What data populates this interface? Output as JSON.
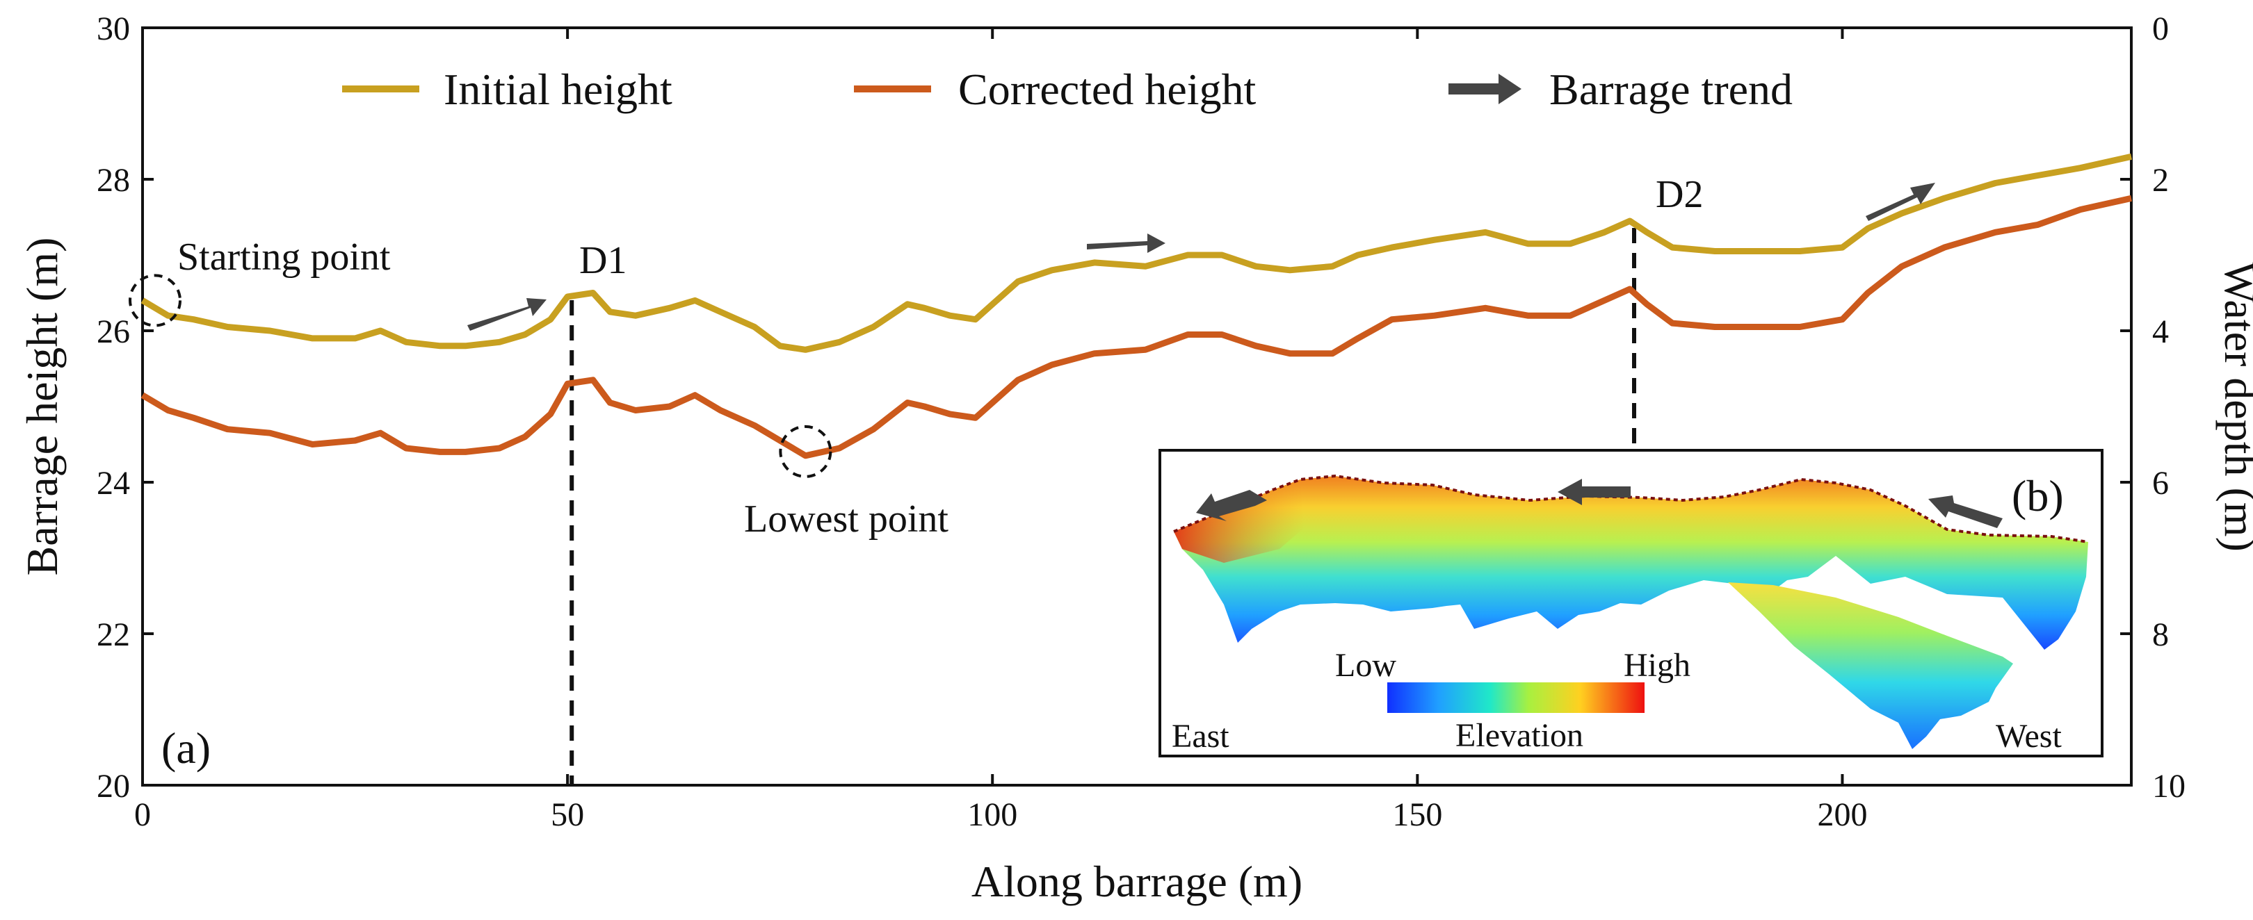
{
  "chart_data": {
    "type": "line",
    "panel_label": "(a)",
    "xlabel": "Along barrage (m)",
    "ylabel": "Barrage height (m)",
    "y2label": "Water depth (m)",
    "xlim": [
      0,
      234
    ],
    "ylim": [
      20,
      30
    ],
    "y2lim": [
      0,
      10
    ],
    "xticks": [
      0,
      50,
      100,
      150,
      200
    ],
    "yticks": [
      20,
      22,
      24,
      26,
      28,
      30
    ],
    "y2ticks": [
      0,
      2,
      4,
      6,
      8,
      10
    ],
    "grid": false,
    "legend_position": "top",
    "series": [
      {
        "name": "Initial height",
        "color": "#C8A020",
        "x": [
          0,
          3,
          6,
          10,
          15,
          20,
          25,
          28,
          31,
          35,
          38,
          42,
          45,
          48,
          50,
          53,
          55,
          58,
          62,
          65,
          68,
          72,
          75,
          78,
          82,
          86,
          90,
          92,
          95,
          98,
          100,
          103,
          107,
          112,
          118,
          123,
          127,
          131,
          135,
          140,
          143,
          147,
          152,
          158,
          163,
          168,
          172,
          175,
          177,
          180,
          185,
          190,
          195,
          200,
          203,
          207,
          212,
          218,
          223,
          228,
          234
        ],
        "values": [
          26.4,
          26.2,
          26.15,
          26.05,
          26.0,
          25.9,
          25.9,
          26.0,
          25.85,
          25.8,
          25.8,
          25.85,
          25.95,
          26.15,
          26.45,
          26.5,
          26.25,
          26.2,
          26.3,
          26.4,
          26.25,
          26.05,
          25.8,
          25.75,
          25.85,
          26.05,
          26.35,
          26.3,
          26.2,
          26.15,
          26.35,
          26.65,
          26.8,
          26.9,
          26.85,
          27.0,
          27.0,
          26.85,
          26.8,
          26.85,
          27.0,
          27.1,
          27.2,
          27.3,
          27.15,
          27.15,
          27.3,
          27.45,
          27.3,
          27.1,
          27.05,
          27.05,
          27.05,
          27.1,
          27.35,
          27.55,
          27.75,
          27.95,
          28.05,
          28.15,
          28.3
        ]
      },
      {
        "name": "Corrected height",
        "color": "#CC5A1C",
        "x": [
          0,
          3,
          6,
          10,
          15,
          20,
          25,
          28,
          31,
          35,
          38,
          42,
          45,
          48,
          50,
          53,
          55,
          58,
          62,
          65,
          68,
          72,
          75,
          78,
          82,
          86,
          90,
          92,
          95,
          98,
          100,
          103,
          107,
          112,
          118,
          123,
          127,
          131,
          135,
          140,
          143,
          147,
          152,
          158,
          163,
          168,
          172,
          175,
          177,
          180,
          185,
          190,
          195,
          200,
          203,
          207,
          212,
          218,
          223,
          228,
          234
        ],
        "values": [
          25.15,
          24.95,
          24.85,
          24.7,
          24.65,
          24.5,
          24.55,
          24.65,
          24.45,
          24.4,
          24.4,
          24.45,
          24.6,
          24.9,
          25.3,
          25.35,
          25.05,
          24.95,
          25.0,
          25.15,
          24.95,
          24.75,
          24.55,
          24.35,
          24.45,
          24.7,
          25.05,
          25.0,
          24.9,
          24.85,
          25.05,
          25.35,
          25.55,
          25.7,
          25.75,
          25.95,
          25.95,
          25.8,
          25.7,
          25.7,
          25.9,
          26.15,
          26.2,
          26.3,
          26.2,
          26.2,
          26.4,
          26.55,
          26.35,
          26.1,
          26.05,
          26.05,
          26.05,
          26.15,
          26.5,
          26.85,
          27.1,
          27.3,
          27.4,
          27.6,
          27.75
        ]
      }
    ],
    "legend_entries": [
      "Initial height",
      "Corrected height",
      "Barrage trend"
    ],
    "annotations": [
      {
        "text": "Starting point",
        "x": 0,
        "y": 26.4
      },
      {
        "text": "Lowest point",
        "x": 78,
        "y": 24.35
      },
      {
        "text": "D1",
        "x": 50.5
      },
      {
        "text": "D2",
        "x": 175.5
      }
    ],
    "inset": {
      "label": "(b)",
      "colorbar_low": "Low",
      "colorbar_high": "High",
      "colorbar_title": "Elevation",
      "left_label": "East",
      "right_label": "West"
    }
  },
  "colors": {
    "initial": "#C8A020",
    "corrected": "#CC5A1C",
    "trend_arrow": "#454545",
    "axis": "#111111"
  }
}
